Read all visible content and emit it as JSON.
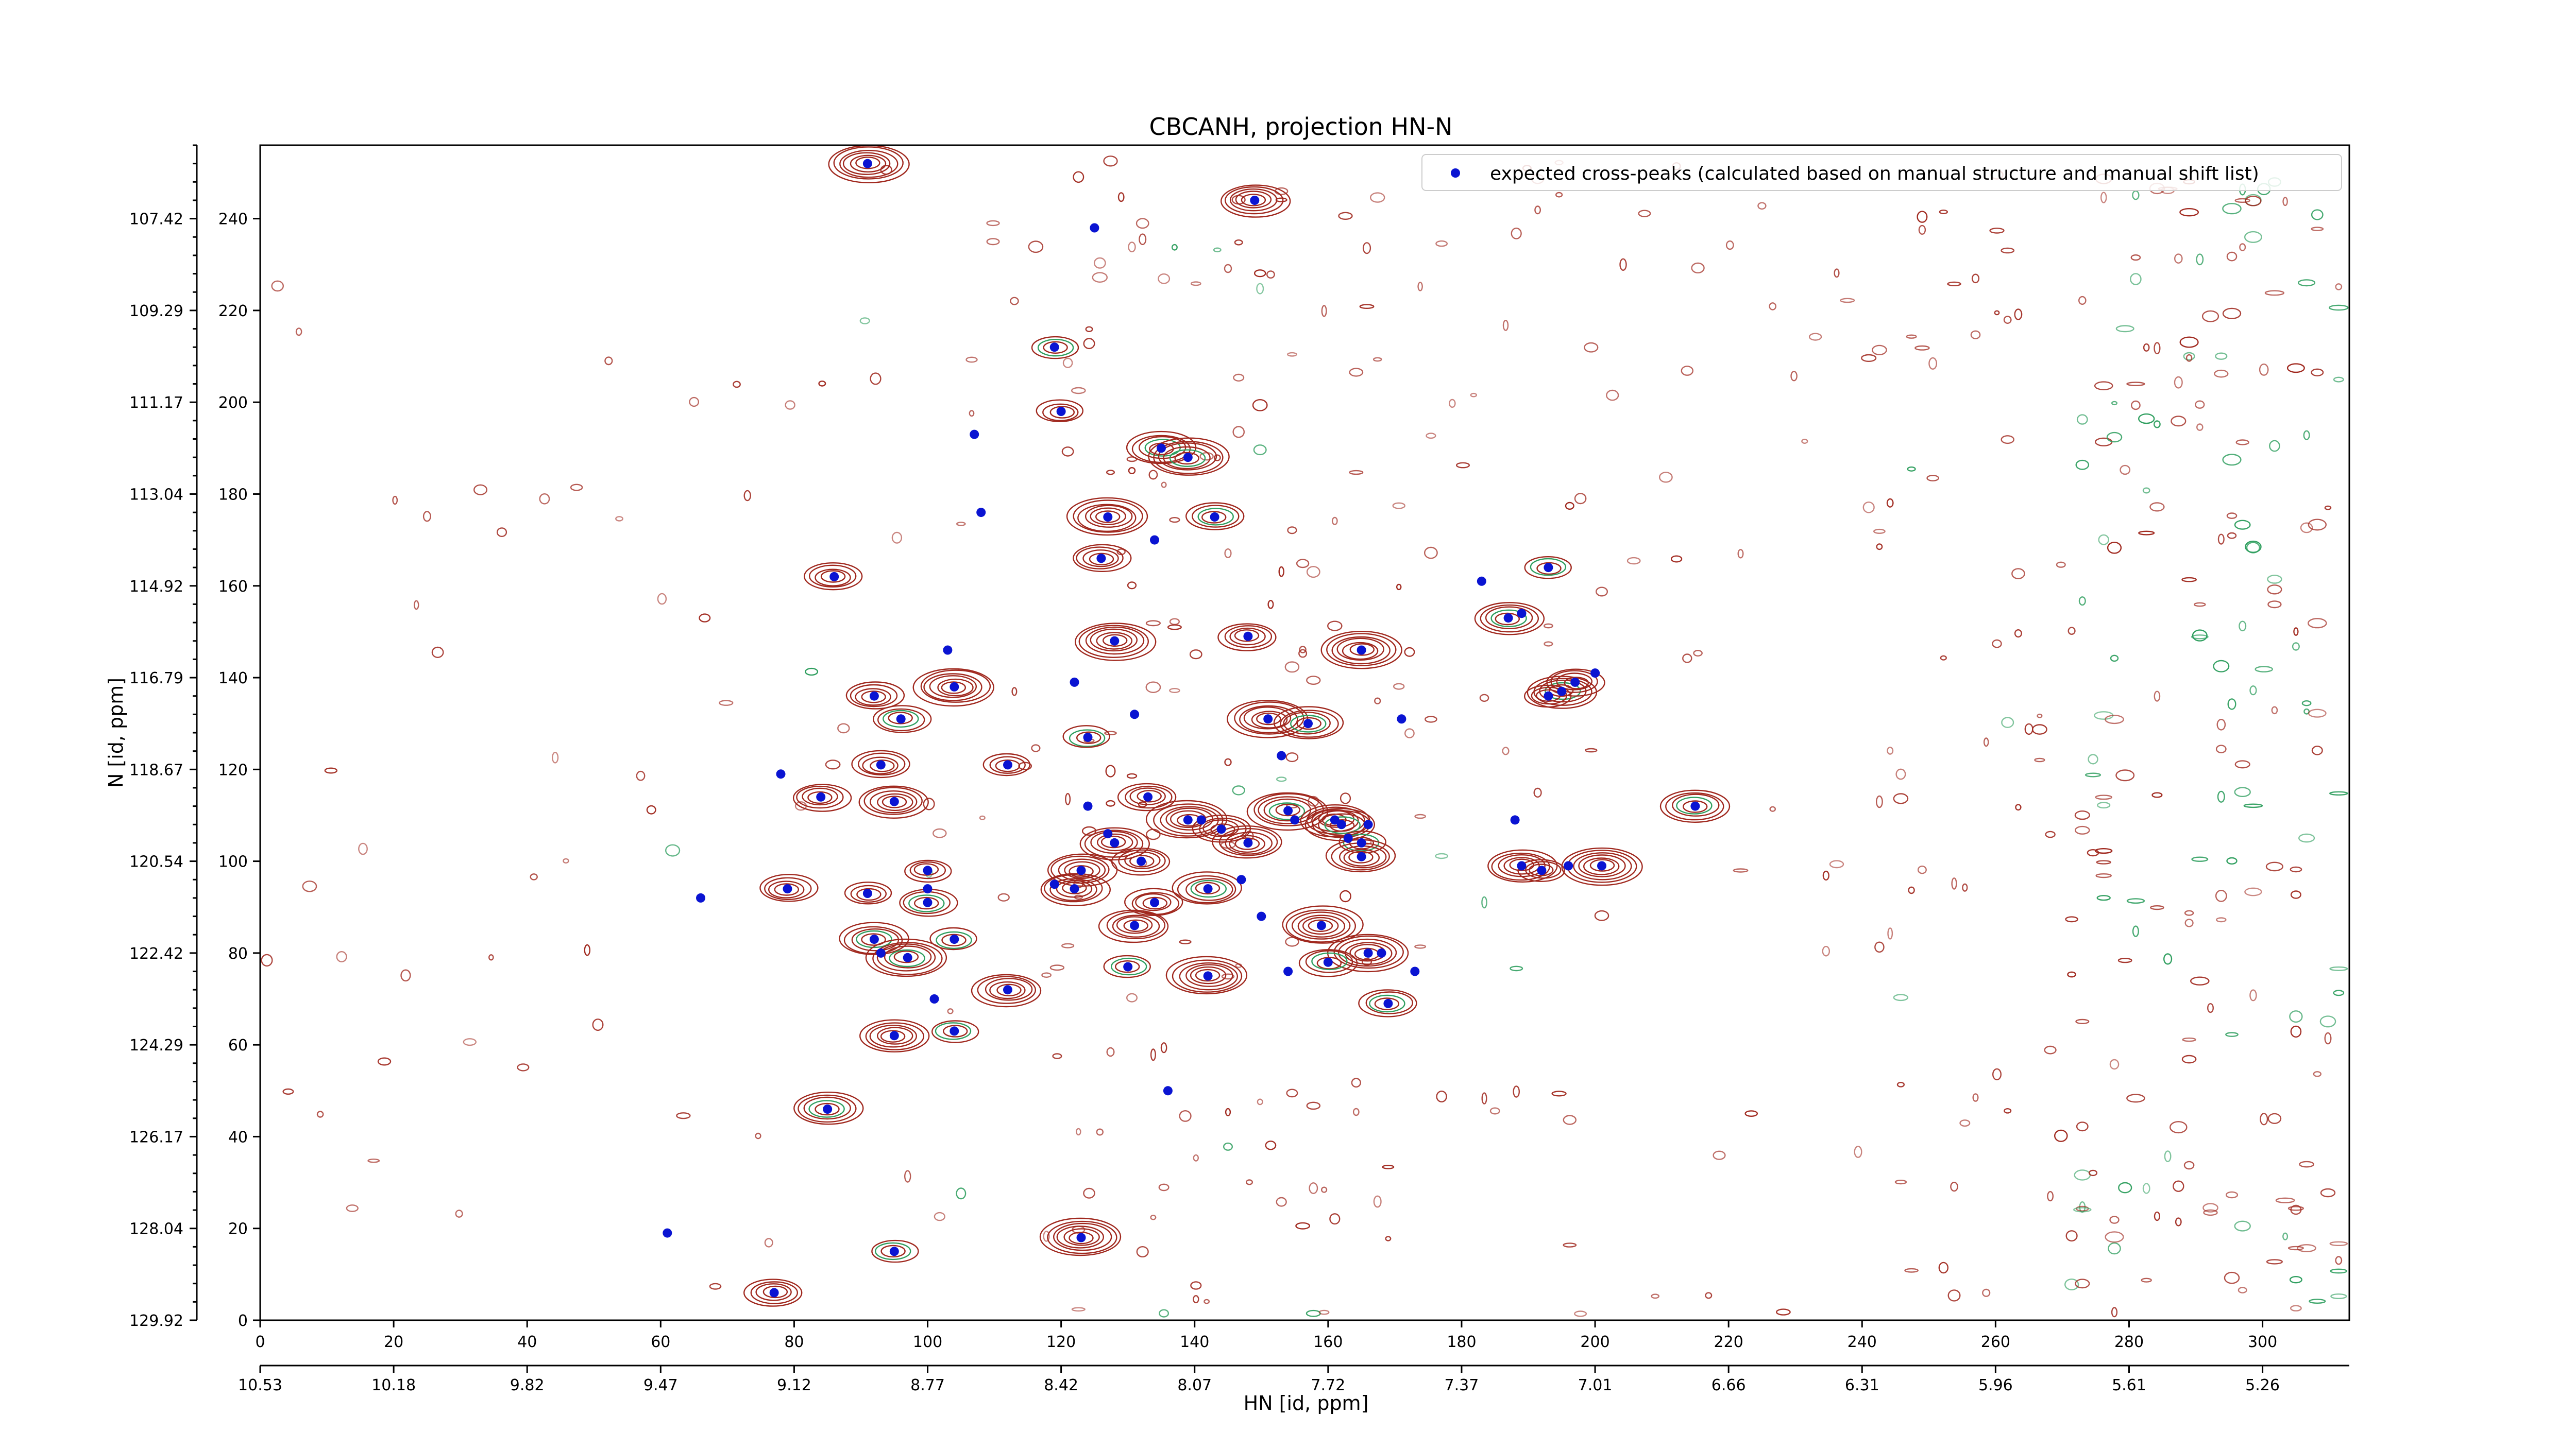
{
  "chart_data": {
    "type": "scatter",
    "title": "CBCANH, projection HN-N",
    "xlabel": "HN [id, ppm]",
    "ylabel": "N [id, ppm]",
    "xlim": [
      0,
      313
    ],
    "ylim": [
      0,
      256
    ],
    "grid": false,
    "legend_position": "top-right",
    "x_ticks": [
      0,
      20,
      40,
      60,
      80,
      100,
      120,
      140,
      160,
      180,
      200,
      220,
      240,
      260,
      280,
      300
    ],
    "y_ticks": [
      0,
      20,
      40,
      60,
      80,
      100,
      120,
      140,
      160,
      180,
      200,
      220,
      240
    ],
    "x_secondary_tick_labels": [
      "10.53",
      "10.18",
      "9.82",
      "9.47",
      "9.12",
      "8.77",
      "8.42",
      "8.07",
      "7.72",
      "7.37",
      "7.01",
      "6.66",
      "6.31",
      "5.96",
      "5.61",
      "5.26"
    ],
    "y_secondary_tick_labels": [
      "129.92",
      "128.04",
      "126.17",
      "124.29",
      "122.42",
      "120.54",
      "118.67",
      "116.79",
      "114.92",
      "113.04",
      "111.17",
      "109.29",
      "107.42"
    ],
    "contour_colors": {
      "positive": "#a0281e",
      "negative": "#2e9e5e"
    },
    "marker_color": "#0a14d2",
    "series": [
      {
        "name": "expected cross-peaks (calculated based on manual structure and manual shift list)",
        "points": [
          [
            91,
            252
          ],
          [
            149,
            244
          ],
          [
            125,
            238
          ],
          [
            119,
            212
          ],
          [
            120,
            198
          ],
          [
            107,
            193
          ],
          [
            135,
            190
          ],
          [
            139,
            188
          ],
          [
            108,
            176
          ],
          [
            143,
            175
          ],
          [
            127,
            175
          ],
          [
            134,
            170
          ],
          [
            86,
            162
          ],
          [
            126,
            166
          ],
          [
            183,
            161
          ],
          [
            193,
            164
          ],
          [
            187,
            153
          ],
          [
            189,
            154
          ],
          [
            128,
            148
          ],
          [
            148,
            149
          ],
          [
            103,
            146
          ],
          [
            165,
            146
          ],
          [
            104,
            138
          ],
          [
            122,
            139
          ],
          [
            92,
            136
          ],
          [
            96,
            131
          ],
          [
            131,
            132
          ],
          [
            151,
            131
          ],
          [
            157,
            130
          ],
          [
            171,
            131
          ],
          [
            195,
            137
          ],
          [
            197,
            139
          ],
          [
            200,
            141
          ],
          [
            193,
            136
          ],
          [
            124,
            127
          ],
          [
            153,
            123
          ],
          [
            93,
            121
          ],
          [
            112,
            121
          ],
          [
            78,
            119
          ],
          [
            84,
            114
          ],
          [
            95,
            113
          ],
          [
            124,
            112
          ],
          [
            133,
            114
          ],
          [
            139,
            109
          ],
          [
            141,
            109
          ],
          [
            144,
            107
          ],
          [
            154,
            111
          ],
          [
            155,
            109
          ],
          [
            161,
            109
          ],
          [
            162,
            108
          ],
          [
            166,
            108
          ],
          [
            165,
            104
          ],
          [
            165,
            101
          ],
          [
            163,
            105
          ],
          [
            148,
            104
          ],
          [
            128,
            104
          ],
          [
            127,
            106
          ],
          [
            123,
            98
          ],
          [
            122,
            94
          ],
          [
            119,
            95
          ],
          [
            132,
            100
          ],
          [
            100,
            98
          ],
          [
            100,
            94
          ],
          [
            100,
            91
          ],
          [
            91,
            93
          ],
          [
            147,
            96
          ],
          [
            142,
            94
          ],
          [
            134,
            91
          ],
          [
            188,
            109
          ],
          [
            189,
            99
          ],
          [
            192,
            98
          ],
          [
            196,
            99
          ],
          [
            201,
            99
          ],
          [
            215,
            112
          ],
          [
            66,
            92
          ],
          [
            79,
            94
          ],
          [
            131,
            86
          ],
          [
            150,
            88
          ],
          [
            159,
            86
          ],
          [
            92,
            83
          ],
          [
            93,
            80
          ],
          [
            97,
            79
          ],
          [
            104,
            83
          ],
          [
            168,
            80
          ],
          [
            166,
            80
          ],
          [
            160,
            78
          ],
          [
            154,
            76
          ],
          [
            142,
            75
          ],
          [
            130,
            77
          ],
          [
            173,
            76
          ],
          [
            112,
            72
          ],
          [
            169,
            69
          ],
          [
            101,
            70
          ],
          [
            95,
            62
          ],
          [
            104,
            63
          ],
          [
            136,
            50
          ],
          [
            85,
            46
          ],
          [
            123,
            18
          ],
          [
            61,
            19
          ],
          [
            95,
            15
          ],
          [
            77,
            6
          ]
        ]
      }
    ]
  }
}
